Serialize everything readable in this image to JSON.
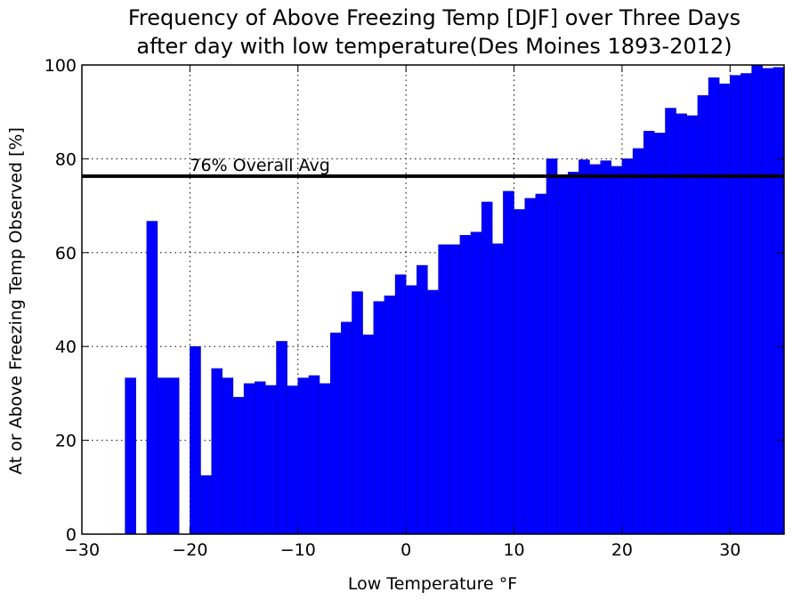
{
  "chart_data": {
    "type": "bar",
    "title_line1": "Frequency of Above Freezing Temp [DJF] over Three Days",
    "title_line2": "after day with low temperature(Des Moines 1893-2012)",
    "xlabel": "Low Temperature °F",
    "ylabel": "At or Above Freezing Temp Observed [%]",
    "xlim": [
      -30,
      35
    ],
    "ylim": [
      0,
      100
    ],
    "xticks": [
      -30,
      -20,
      -10,
      0,
      10,
      20,
      30
    ],
    "xtick_labels": [
      "−30",
      "−20",
      "−10",
      "0",
      "10",
      "20",
      "30"
    ],
    "yticks": [
      0,
      20,
      40,
      60,
      80,
      100
    ],
    "ytick_labels": [
      "0",
      "20",
      "40",
      "60",
      "80",
      "100"
    ],
    "grid": true,
    "bar_color": "#0000ff",
    "bar_width": 1,
    "x": [
      -30,
      -29,
      -28,
      -27,
      -26,
      -25,
      -24,
      -23,
      -22,
      -21,
      -20,
      -19,
      -18,
      -17,
      -16,
      -15,
      -14,
      -13,
      -12,
      -11,
      -10,
      -9,
      -8,
      -7,
      -6,
      -5,
      -4,
      -3,
      -2,
      -1,
      0,
      1,
      2,
      3,
      4,
      5,
      6,
      7,
      8,
      9,
      10,
      11,
      12,
      13,
      14,
      15,
      16,
      17,
      18,
      19,
      20,
      21,
      22,
      23,
      24,
      25,
      26,
      27,
      28,
      29,
      30,
      31,
      32,
      33,
      34
    ],
    "values": [
      0,
      0,
      0,
      0,
      33.3,
      0,
      66.7,
      33.3,
      33.3,
      0,
      40,
      12.5,
      35.3,
      33.3,
      29.2,
      32.1,
      32.5,
      31.7,
      41.1,
      31.6,
      33.3,
      33.8,
      32.1,
      42.9,
      45.2,
      51.7,
      42.5,
      49.6,
      50.8,
      55.3,
      53,
      57.3,
      52,
      61.7,
      61.7,
      63.7,
      64.4,
      70.8,
      61.9,
      73.1,
      69.2,
      71.6,
      72.5,
      80,
      76.4,
      77.2,
      79.8,
      78.8,
      79.6,
      78.4,
      80,
      82.2,
      85.9,
      85.5,
      90.8,
      89.6,
      89.2,
      93.5,
      97.3,
      96,
      97.8,
      98.2,
      100,
      99.3,
      99.5
    ],
    "reference_line": {
      "value": 76.3,
      "label": "76% Overall Avg",
      "color": "#000000"
    }
  }
}
